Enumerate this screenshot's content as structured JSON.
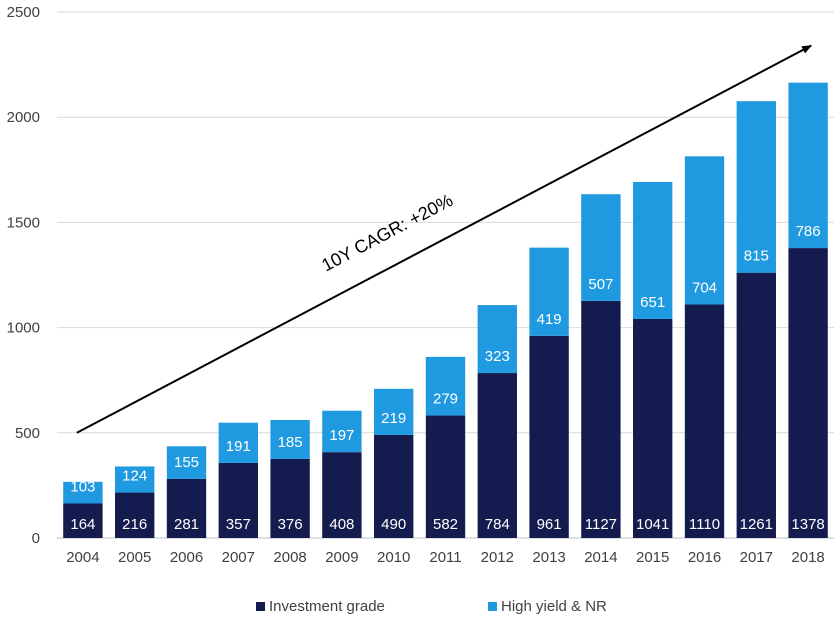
{
  "chart_data": {
    "type": "bar",
    "stacked": true,
    "categories": [
      "2004",
      "2005",
      "2006",
      "2007",
      "2008",
      "2009",
      "2010",
      "2011",
      "2012",
      "2013",
      "2014",
      "2015",
      "2016",
      "2017",
      "2018"
    ],
    "series": [
      {
        "name": "Investment grade",
        "color": "#141c4f",
        "values": [
          164,
          216,
          281,
          357,
          376,
          408,
          490,
          582,
          784,
          961,
          1127,
          1041,
          1110,
          1261,
          1378
        ]
      },
      {
        "name": "High yield & NR",
        "color": "#1f9ae0",
        "values": [
          103,
          124,
          155,
          191,
          185,
          197,
          219,
          279,
          323,
          419,
          507,
          651,
          704,
          815,
          786
        ]
      }
    ],
    "ylim": [
      0,
      2500
    ],
    "yticks": [
      0,
      500,
      1000,
      1500,
      2000,
      2500
    ],
    "grid": true,
    "legend_position": "bottom",
    "annotation": "10Y CAGR: +20%",
    "trend_arrow": {
      "from": {
        "x": "2004",
        "y": 500
      },
      "to": {
        "x": "2018",
        "y": 2340
      }
    }
  }
}
